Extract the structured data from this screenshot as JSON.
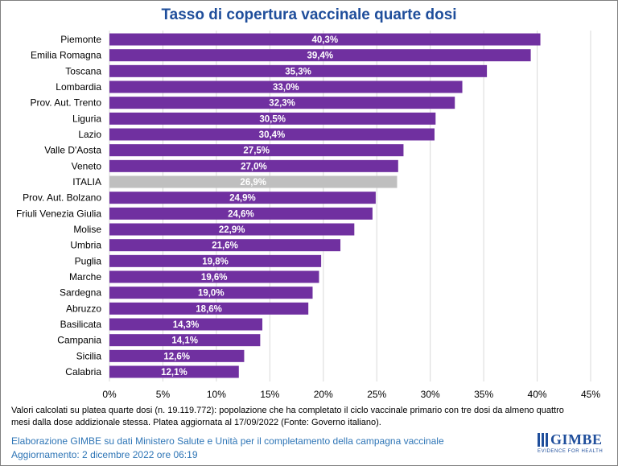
{
  "chart_data": {
    "type": "bar",
    "orientation": "horizontal",
    "title": "Tasso di copertura vaccinale quarte dosi",
    "categories": [
      "Piemonte",
      "Emilia Romagna",
      "Toscana",
      "Lombardia",
      "Prov. Aut. Trento",
      "Liguria",
      "Lazio",
      "Valle D'Aosta",
      "Veneto",
      "ITALIA",
      "Prov. Aut. Bolzano",
      "Friuli Venezia Giulia",
      "Molise",
      "Umbria",
      "Puglia",
      "Marche",
      "Sardegna",
      "Abruzzo",
      "Basilicata",
      "Campania",
      "Sicilia",
      "Calabria"
    ],
    "values": [
      40.3,
      39.4,
      35.3,
      33.0,
      32.3,
      30.5,
      30.4,
      27.5,
      27.0,
      26.9,
      24.9,
      24.6,
      22.9,
      21.6,
      19.8,
      19.6,
      19.0,
      18.6,
      14.3,
      14.1,
      12.6,
      12.1
    ],
    "value_labels": [
      "40,3%",
      "39,4%",
      "35,3%",
      "33,0%",
      "32,3%",
      "30,5%",
      "30,4%",
      "27,5%",
      "27,0%",
      "26,9%",
      "24,9%",
      "24,6%",
      "22,9%",
      "21,6%",
      "19,8%",
      "19,6%",
      "19,0%",
      "18,6%",
      "14,3%",
      "14,1%",
      "12,6%",
      "12,1%"
    ],
    "highlight_category": "ITALIA",
    "xlim": [
      0,
      45
    ],
    "xticks": [
      "0%",
      "5%",
      "10%",
      "15%",
      "20%",
      "25%",
      "30%",
      "35%",
      "40%",
      "45%"
    ],
    "grid": "vertical",
    "colors": {
      "bar": "#7030a0",
      "highlight": "#bfbfbf",
      "grid": "#d9d9d9",
      "title": "#1f4e9b"
    }
  },
  "note": "Valori calcolati su platea quarte dosi (n. 19.119.772): popolazione che ha completato il ciclo vaccinale primario con tre dosi da almeno quattro mesi dalla dose addizionale stessa. Platea aggiornata al 17/09/2022 (Fonte: Governo italiano).",
  "footer": {
    "line1": "Elaborazione GIMBE su dati Ministero Salute e Unità per il completamento della campagna vaccinale",
    "line2": "Aggiornamento: 2 dicembre 2022 ore 06:19"
  },
  "logo": {
    "name": "GIMBE",
    "tagline": "EVIDENCE FOR HEALTH",
    "color": "#1f4e9b"
  }
}
